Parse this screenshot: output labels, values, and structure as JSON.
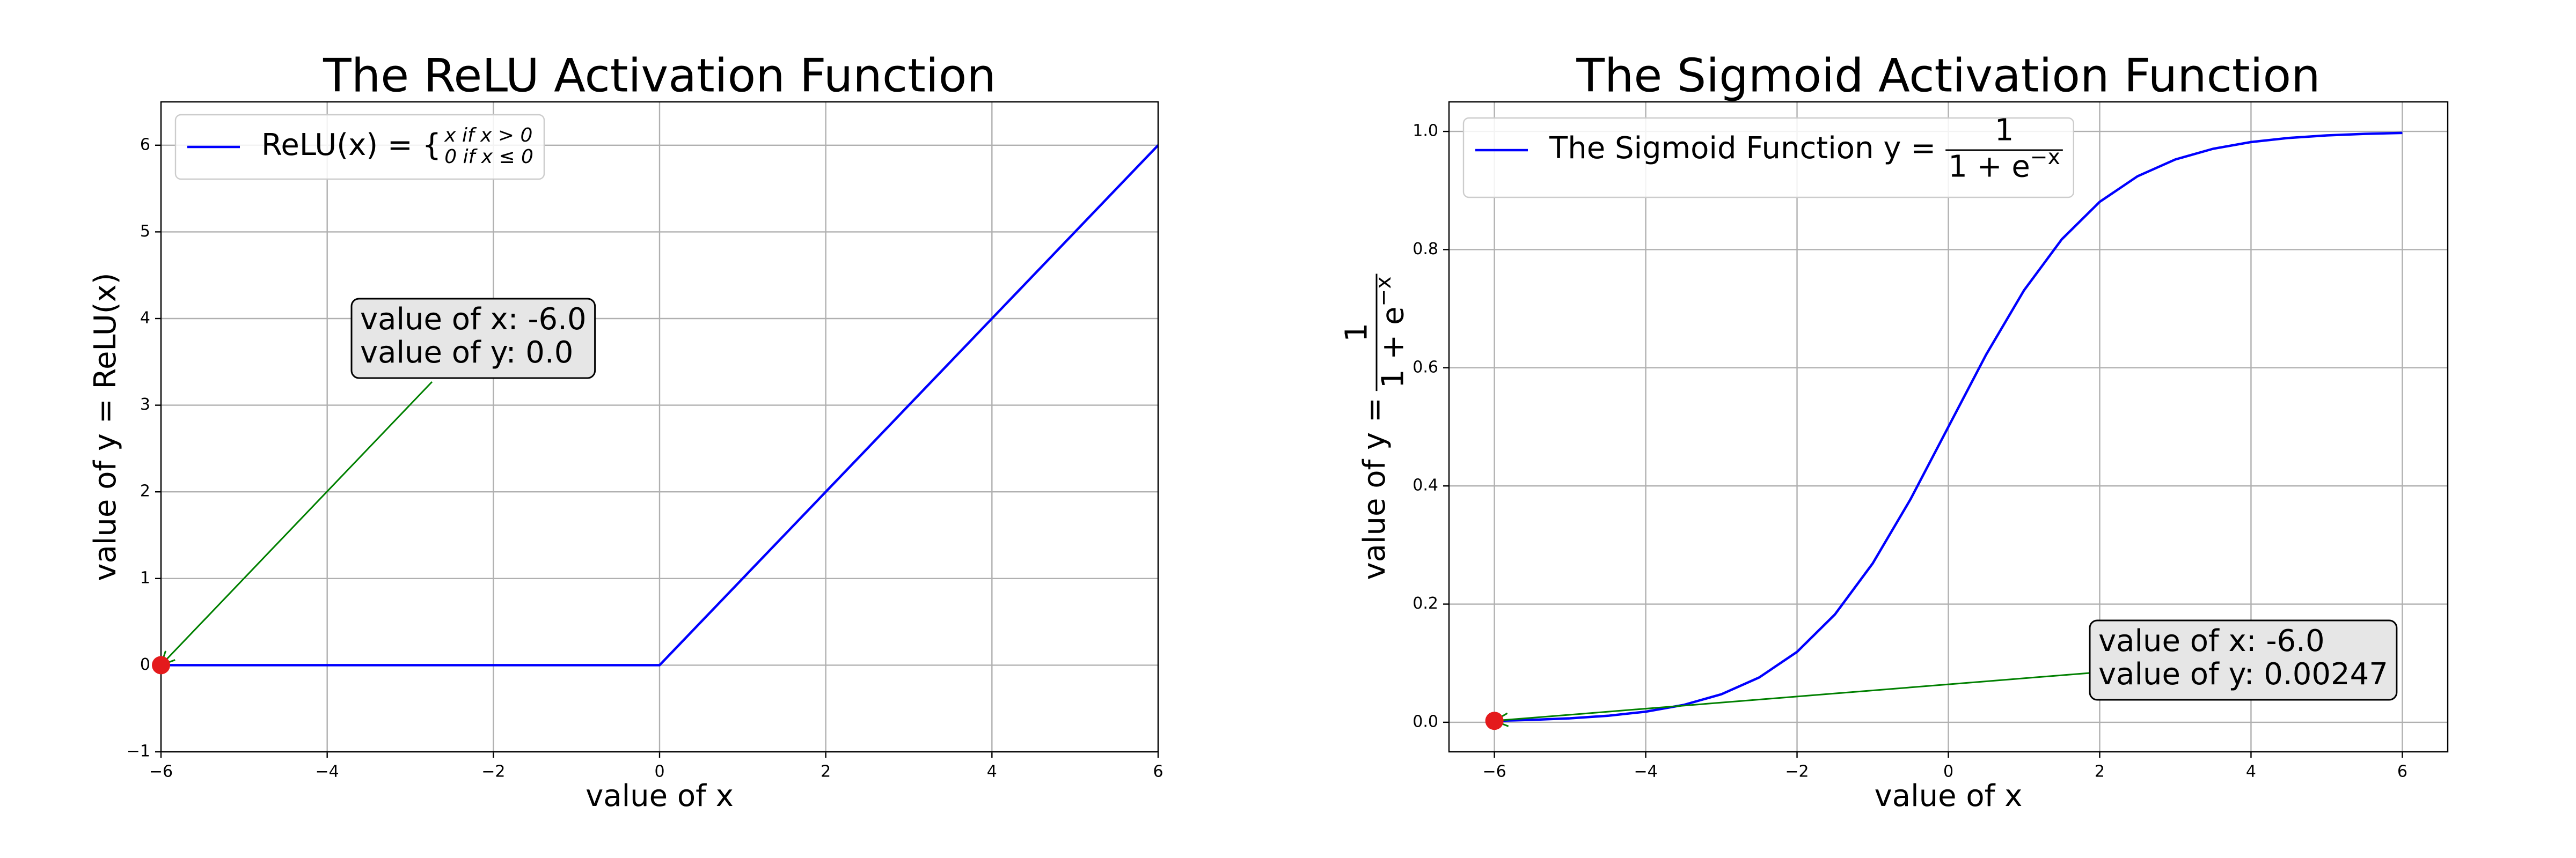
{
  "chart_data": [
    {
      "type": "line",
      "title": "The ReLU Activation Function",
      "xlabel": "value of x",
      "ylabel": "value of y = ReLU(x)",
      "x": [
        -6,
        -5.5,
        -5,
        -4.5,
        -4,
        -3.5,
        -3,
        -2.5,
        -2,
        -1.5,
        -1,
        -0.5,
        0,
        0.5,
        1,
        1.5,
        2,
        2.5,
        3,
        3.5,
        4,
        4.5,
        5,
        5.5,
        6
      ],
      "series": [
        {
          "name": "ReLU(x) = {",
          "legend_cases": [
            "x if x > 0",
            "0 if x ≤ 0"
          ],
          "color": "#0000ff",
          "values": [
            0,
            0,
            0,
            0,
            0,
            0,
            0,
            0,
            0,
            0,
            0,
            0,
            0,
            0.5,
            1,
            1.5,
            2,
            2.5,
            3,
            3.5,
            4,
            4.5,
            5,
            5.5,
            6
          ]
        }
      ],
      "xlim": [
        -6,
        6
      ],
      "ylim": [
        -1,
        6.5
      ],
      "xticks": [
        {
          "value": -6,
          "label": "−6"
        },
        {
          "value": -4,
          "label": "−4"
        },
        {
          "value": -2,
          "label": "−2"
        },
        0,
        2,
        4,
        6
      ],
      "yticks": [
        {
          "value": -1,
          "label": "−1"
        },
        0,
        1,
        2,
        3,
        4,
        5,
        6
      ],
      "grid": true,
      "legend": "upper left",
      "annotation": {
        "lines": [
          "value of x: -6.0",
          "value of y: 0.0"
        ],
        "x": -6,
        "y": 0,
        "marker_color": "#e41a1c",
        "arrow_color": "green"
      }
    },
    {
      "type": "line",
      "title": "The Sigmoid Activation Function",
      "xlabel": "value of x",
      "ylabel": "value of y =",
      "ylabel_fraction": {
        "numerator": "1",
        "denominator": "1 + e",
        "exponent": "−x"
      },
      "x": [
        -6,
        -5.5,
        -5,
        -4.5,
        -4,
        -3.5,
        -3,
        -2.5,
        -2,
        -1.5,
        -1,
        -0.5,
        0,
        0.5,
        1,
        1.5,
        2,
        2.5,
        3,
        3.5,
        4,
        4.5,
        5,
        5.5,
        6
      ],
      "series": [
        {
          "name": "The Sigmoid Function y =",
          "legend_fraction": {
            "numerator": "1",
            "denominator": "1 + e",
            "exponent": "−x"
          },
          "color": "#0000ff",
          "values": [
            0.002473,
            0.00407,
            0.006693,
            0.010987,
            0.017986,
            0.029312,
            0.047426,
            0.075858,
            0.119203,
            0.182426,
            0.268941,
            0.377541,
            0.5,
            0.622459,
            0.731059,
            0.817574,
            0.880797,
            0.924142,
            0.952574,
            0.970688,
            0.982014,
            0.989013,
            0.993307,
            0.99593,
            0.997527
          ]
        }
      ],
      "xlim": [
        -6.6,
        6.6
      ],
      "ylim": [
        -0.05,
        1.05
      ],
      "xticks": [
        {
          "value": -6,
          "label": "−6"
        },
        {
          "value": -4,
          "label": "−4"
        },
        {
          "value": -2,
          "label": "−2"
        },
        0,
        2,
        4,
        6
      ],
      "yticks": [
        {
          "value": 0,
          "label": "0.0"
        },
        {
          "value": 0.2,
          "label": "0.2"
        },
        {
          "value": 0.4,
          "label": "0.4"
        },
        {
          "value": 0.6,
          "label": "0.6"
        },
        {
          "value": 0.8,
          "label": "0.8"
        },
        {
          "value": 1.0,
          "label": "1.0"
        }
      ],
      "grid": true,
      "legend": "upper left",
      "annotation": {
        "lines": [
          "value of x: -6.0",
          "value of y: 0.00247"
        ],
        "x": -6,
        "y": 0.00247,
        "marker_color": "#e41a1c",
        "arrow_color": "green"
      }
    }
  ]
}
